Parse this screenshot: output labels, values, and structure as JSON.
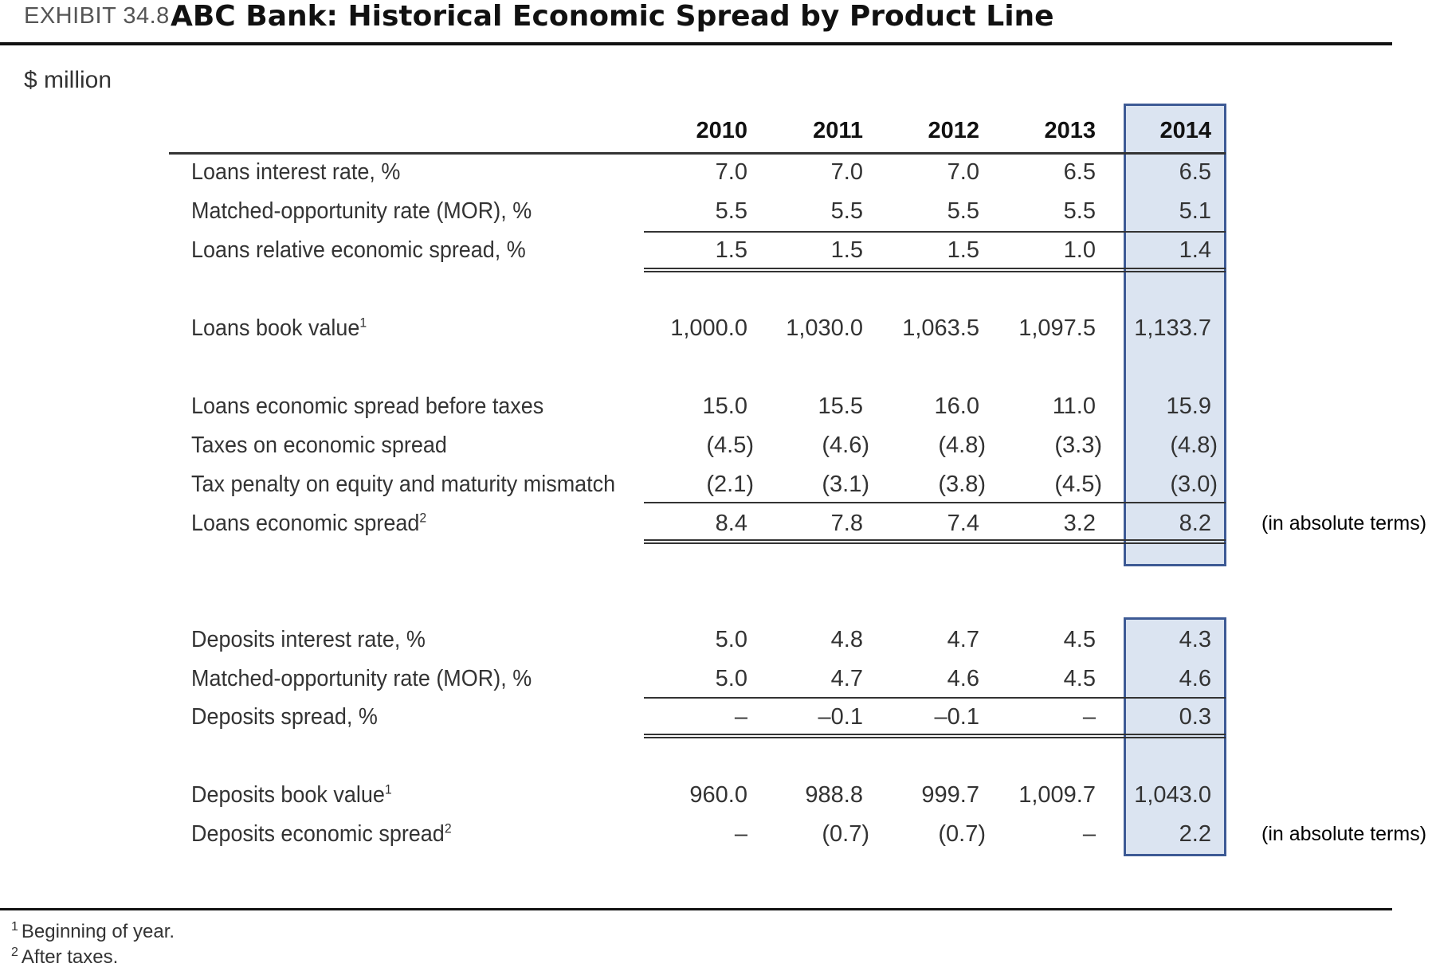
{
  "exhibit": {
    "label": "EXHIBIT 34.8",
    "title": "ABC Bank: Historical Economic Spread by Product Line",
    "unit": "$ million"
  },
  "table": {
    "years": [
      "2010",
      "2011",
      "2012",
      "2013",
      "2014"
    ],
    "highlight_year": "2014",
    "rows": [
      {
        "label": "Loans interest rate, %",
        "sup": "",
        "values": [
          "7.0",
          "7.0",
          "7.0",
          "6.5",
          "6.5"
        ],
        "note": ""
      },
      {
        "label": "Matched-opportunity rate (MOR), %",
        "sup": "",
        "values": [
          "5.5",
          "5.5",
          "5.5",
          "5.5",
          "5.1"
        ],
        "note": ""
      },
      {
        "label": "Loans relative economic spread, %",
        "sup": "",
        "values": [
          "1.5",
          "1.5",
          "1.5",
          "1.0",
          "1.4"
        ],
        "note": ""
      },
      {
        "label": "Loans book value",
        "sup": "1",
        "values": [
          "1,000.0",
          "1,030.0",
          "1,063.5",
          "1,097.5",
          "1,133.7"
        ],
        "note": ""
      },
      {
        "label": "Loans economic spread before taxes",
        "sup": "",
        "values": [
          "15.0",
          "15.5",
          "16.0",
          "11.0",
          "15.9"
        ],
        "note": ""
      },
      {
        "label": "Taxes on economic spread",
        "sup": "",
        "values": [
          "(4.5)",
          "(4.6)",
          "(4.8)",
          "(3.3)",
          "(4.8)"
        ],
        "note": ""
      },
      {
        "label": "Tax penalty on equity and maturity mismatch",
        "sup": "",
        "values": [
          "(2.1)",
          "(3.1)",
          "(3.8)",
          "(4.5)",
          "(3.0)"
        ],
        "note": ""
      },
      {
        "label": "Loans economic spread",
        "sup": "2",
        "values": [
          "8.4",
          "7.8",
          "7.4",
          "3.2",
          "8.2"
        ],
        "note": "(in absolute terms)"
      },
      {
        "label": "Deposits interest rate, %",
        "sup": "",
        "values": [
          "5.0",
          "4.8",
          "4.7",
          "4.5",
          "4.3"
        ],
        "note": ""
      },
      {
        "label": "Matched-opportunity rate (MOR), %",
        "sup": "",
        "values": [
          "5.0",
          "4.7",
          "4.6",
          "4.5",
          "4.6"
        ],
        "note": ""
      },
      {
        "label": "Deposits spread, %",
        "sup": "",
        "values": [
          "–",
          "–0.1",
          "–0.1",
          "–",
          "0.3"
        ],
        "note": ""
      },
      {
        "label": "Deposits book value",
        "sup": "1",
        "values": [
          "960.0",
          "988.8",
          "999.7",
          "1,009.7",
          "1,043.0"
        ],
        "note": ""
      },
      {
        "label": "Deposits economic spread",
        "sup": "2",
        "values": [
          "–",
          "(0.7)",
          "(0.7)",
          "–",
          "2.2"
        ],
        "note": "(in absolute terms)"
      }
    ]
  },
  "footnotes": [
    {
      "mark": "1",
      "text": "Beginning of year."
    },
    {
      "mark": "2",
      "text": "After taxes."
    }
  ]
}
